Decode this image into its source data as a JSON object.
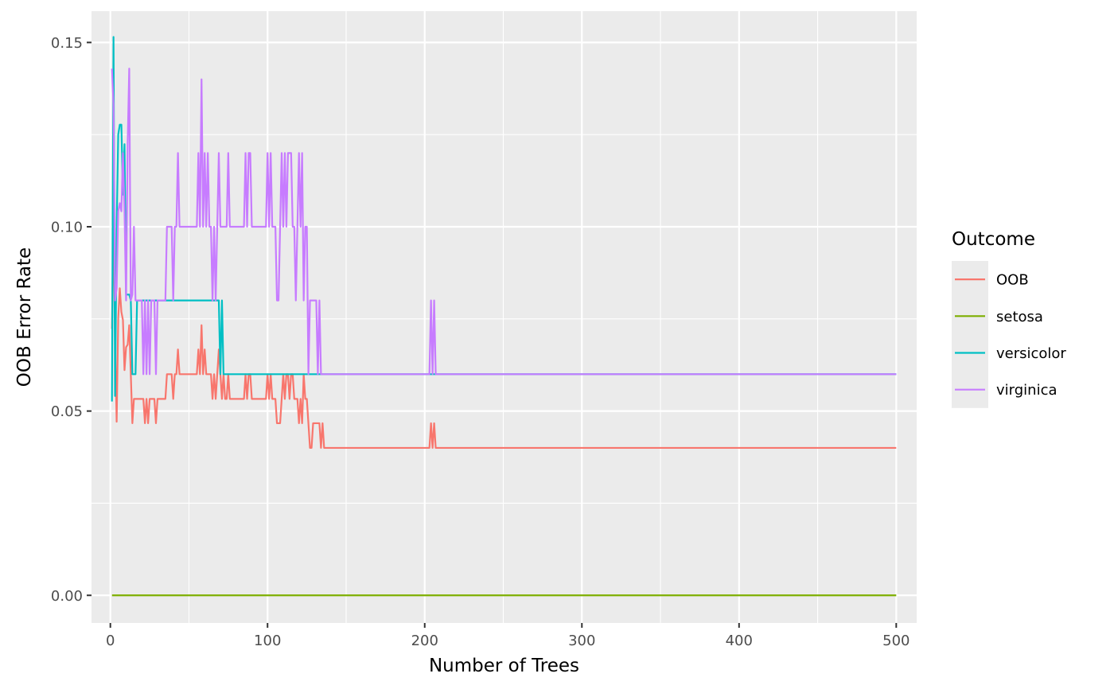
{
  "chart_data": {
    "type": "line",
    "title": "",
    "xlabel": "Number of Trees",
    "ylabel": "OOB Error Rate",
    "xlim": [
      -12,
      513
    ],
    "ylim": [
      -0.0075,
      0.1585
    ],
    "x_ticks": [
      0,
      100,
      200,
      300,
      400,
      500
    ],
    "x_tick_labels": [
      "0",
      "100",
      "200",
      "300",
      "400",
      "500"
    ],
    "y_ticks": [
      0.0,
      0.05,
      0.1,
      0.15
    ],
    "y_tick_labels": [
      "0.00",
      "0.05",
      "0.10",
      "0.15"
    ],
    "grid": true,
    "background": "#EBEBEB",
    "legend": {
      "title": "Outcome",
      "position": "right",
      "entries": [
        "OOB",
        "setosa",
        "versicolor",
        "virginica"
      ]
    },
    "series": [
      {
        "name": "OOB",
        "color": "#F8766D",
        "points": [
          [
            1,
            0.0723
          ],
          [
            2,
            0.1024
          ],
          [
            3,
            0.0687
          ],
          [
            4,
            0.0471
          ],
          [
            5,
            0.0753
          ],
          [
            6,
            0.0833
          ],
          [
            7,
            0.0769
          ],
          [
            8,
            0.0747
          ],
          [
            9,
            0.0611
          ],
          [
            10,
            0.0673
          ],
          [
            11,
            0.068
          ],
          [
            12,
            0.0733
          ],
          [
            13,
            0.06
          ],
          [
            14,
            0.0467
          ],
          [
            15,
            0.0533
          ],
          [
            16,
            0.0533
          ],
          [
            17,
            0.0533
          ],
          [
            18,
            0.0533
          ],
          [
            19,
            0.0533
          ],
          [
            20,
            0.0533
          ],
          [
            21,
            0.0533
          ],
          [
            22,
            0.0467
          ],
          [
            23,
            0.0533
          ],
          [
            24,
            0.0467
          ],
          [
            25,
            0.0533
          ],
          [
            26,
            0.0533
          ],
          [
            27,
            0.0533
          ],
          [
            28,
            0.0533
          ],
          [
            29,
            0.0467
          ],
          [
            30,
            0.0533
          ],
          [
            31,
            0.0533
          ],
          [
            32,
            0.0533
          ],
          [
            33,
            0.0533
          ],
          [
            34,
            0.0533
          ],
          [
            35,
            0.0533
          ],
          [
            36,
            0.06
          ],
          [
            37,
            0.06
          ],
          [
            38,
            0.06
          ],
          [
            39,
            0.06
          ],
          [
            40,
            0.0533
          ],
          [
            41,
            0.06
          ],
          [
            42,
            0.06
          ],
          [
            43,
            0.0667
          ],
          [
            44,
            0.06
          ],
          [
            45,
            0.06
          ],
          [
            50,
            0.06
          ],
          [
            55,
            0.06
          ],
          [
            56,
            0.0667
          ],
          [
            57,
            0.06
          ],
          [
            58,
            0.0733
          ],
          [
            59,
            0.06
          ],
          [
            60,
            0.0667
          ],
          [
            61,
            0.06
          ],
          [
            62,
            0.06
          ],
          [
            63,
            0.06
          ],
          [
            64,
            0.06
          ],
          [
            65,
            0.0533
          ],
          [
            66,
            0.06
          ],
          [
            67,
            0.0533
          ],
          [
            68,
            0.06
          ],
          [
            69,
            0.0667
          ],
          [
            70,
            0.06
          ],
          [
            71,
            0.0533
          ],
          [
            72,
            0.06
          ],
          [
            73,
            0.0533
          ],
          [
            74,
            0.0533
          ],
          [
            75,
            0.06
          ],
          [
            76,
            0.0533
          ],
          [
            77,
            0.0533
          ],
          [
            78,
            0.0533
          ],
          [
            79,
            0.0533
          ],
          [
            80,
            0.0533
          ],
          [
            85,
            0.0533
          ],
          [
            86,
            0.06
          ],
          [
            87,
            0.0533
          ],
          [
            88,
            0.06
          ],
          [
            89,
            0.06
          ],
          [
            90,
            0.0533
          ],
          [
            91,
            0.0533
          ],
          [
            92,
            0.0533
          ],
          [
            93,
            0.0533
          ],
          [
            94,
            0.0533
          ],
          [
            95,
            0.0533
          ],
          [
            96,
            0.0533
          ],
          [
            97,
            0.0533
          ],
          [
            98,
            0.0533
          ],
          [
            99,
            0.0533
          ],
          [
            100,
            0.06
          ],
          [
            101,
            0.0533
          ],
          [
            102,
            0.06
          ],
          [
            103,
            0.0533
          ],
          [
            104,
            0.0533
          ],
          [
            105,
            0.0533
          ],
          [
            106,
            0.0467
          ],
          [
            107,
            0.0467
          ],
          [
            108,
            0.0467
          ],
          [
            109,
            0.0533
          ],
          [
            110,
            0.06
          ],
          [
            111,
            0.0533
          ],
          [
            112,
            0.06
          ],
          [
            113,
            0.06
          ],
          [
            114,
            0.0533
          ],
          [
            115,
            0.06
          ],
          [
            116,
            0.06
          ],
          [
            117,
            0.0533
          ],
          [
            118,
            0.0533
          ],
          [
            119,
            0.0533
          ],
          [
            120,
            0.0467
          ],
          [
            121,
            0.0533
          ],
          [
            122,
            0.0467
          ],
          [
            123,
            0.06
          ],
          [
            124,
            0.0533
          ],
          [
            125,
            0.0533
          ],
          [
            126,
            0.0467
          ],
          [
            127,
            0.04
          ],
          [
            128,
            0.04
          ],
          [
            129,
            0.0467
          ],
          [
            130,
            0.0467
          ],
          [
            131,
            0.0467
          ],
          [
            132,
            0.0467
          ],
          [
            133,
            0.0467
          ],
          [
            134,
            0.04
          ],
          [
            135,
            0.0467
          ],
          [
            136,
            0.04
          ],
          [
            140,
            0.04
          ],
          [
            150,
            0.04
          ],
          [
            160,
            0.04
          ],
          [
            170,
            0.04
          ],
          [
            180,
            0.04
          ],
          [
            190,
            0.04
          ],
          [
            200,
            0.04
          ],
          [
            203,
            0.04
          ],
          [
            204,
            0.0467
          ],
          [
            205,
            0.04
          ],
          [
            206,
            0.0467
          ],
          [
            207,
            0.04
          ],
          [
            220,
            0.04
          ],
          [
            250,
            0.04
          ],
          [
            300,
            0.04
          ],
          [
            350,
            0.04
          ],
          [
            400,
            0.04
          ],
          [
            450,
            0.04
          ],
          [
            500,
            0.04
          ]
        ]
      },
      {
        "name": "setosa",
        "color": "#7CAE00",
        "points": [
          [
            1,
            0.0
          ],
          [
            500,
            0.0
          ]
        ]
      },
      {
        "name": "versicolor",
        "color": "#00BFC4",
        "points": [
          [
            1,
            0.0526
          ],
          [
            2,
            0.1515
          ],
          [
            3,
            0.0541
          ],
          [
            4,
            0.1
          ],
          [
            5,
            0.125
          ],
          [
            6,
            0.1277
          ],
          [
            7,
            0.1277
          ],
          [
            8,
            0.1087
          ],
          [
            9,
            0.1224
          ],
          [
            10,
            0.0816
          ],
          [
            11,
            0.0816
          ],
          [
            12,
            0.0816
          ],
          [
            13,
            0.08
          ],
          [
            14,
            0.06
          ],
          [
            15,
            0.06
          ],
          [
            16,
            0.06
          ],
          [
            17,
            0.08
          ],
          [
            30,
            0.08
          ],
          [
            50,
            0.08
          ],
          [
            68,
            0.08
          ],
          [
            69,
            0.08
          ],
          [
            70,
            0.06
          ],
          [
            71,
            0.08
          ],
          [
            72,
            0.06
          ],
          [
            100,
            0.06
          ],
          [
            200,
            0.06
          ],
          [
            300,
            0.06
          ],
          [
            400,
            0.06
          ],
          [
            500,
            0.06
          ]
        ]
      },
      {
        "name": "virginica",
        "color": "#C77CFF",
        "points": [
          [
            1,
            0.1429
          ],
          [
            2,
            0.1333
          ],
          [
            3,
            0.08
          ],
          [
            4,
            0.0833
          ],
          [
            5,
            0.1042
          ],
          [
            6,
            0.1064
          ],
          [
            7,
            0.1042
          ],
          [
            8,
            0.12
          ],
          [
            9,
            0.1042
          ],
          [
            10,
            0.08
          ],
          [
            11,
            0.1224
          ],
          [
            12,
            0.1429
          ],
          [
            13,
            0.08
          ],
          [
            14,
            0.0816
          ],
          [
            15,
            0.1
          ],
          [
            16,
            0.08
          ],
          [
            17,
            0.08
          ],
          [
            18,
            0.08
          ],
          [
            19,
            0.08
          ],
          [
            20,
            0.08
          ],
          [
            21,
            0.06
          ],
          [
            22,
            0.08
          ],
          [
            23,
            0.06
          ],
          [
            24,
            0.08
          ],
          [
            25,
            0.06
          ],
          [
            26,
            0.08
          ],
          [
            27,
            0.08
          ],
          [
            28,
            0.08
          ],
          [
            29,
            0.06
          ],
          [
            30,
            0.08
          ],
          [
            31,
            0.08
          ],
          [
            32,
            0.08
          ],
          [
            33,
            0.08
          ],
          [
            34,
            0.08
          ],
          [
            35,
            0.08
          ],
          [
            36,
            0.1
          ],
          [
            37,
            0.1
          ],
          [
            38,
            0.1
          ],
          [
            39,
            0.1
          ],
          [
            40,
            0.08
          ],
          [
            41,
            0.1
          ],
          [
            42,
            0.1
          ],
          [
            43,
            0.12
          ],
          [
            44,
            0.1
          ],
          [
            50,
            0.1
          ],
          [
            54,
            0.1
          ],
          [
            55,
            0.1
          ],
          [
            56,
            0.12
          ],
          [
            57,
            0.1
          ],
          [
            58,
            0.14
          ],
          [
            59,
            0.1
          ],
          [
            60,
            0.12
          ],
          [
            61,
            0.1
          ],
          [
            62,
            0.12
          ],
          [
            63,
            0.1
          ],
          [
            64,
            0.1
          ],
          [
            65,
            0.08
          ],
          [
            66,
            0.1
          ],
          [
            67,
            0.08
          ],
          [
            68,
            0.1
          ],
          [
            69,
            0.12
          ],
          [
            70,
            0.1
          ],
          [
            71,
            0.1
          ],
          [
            72,
            0.1
          ],
          [
            73,
            0.1
          ],
          [
            74,
            0.1
          ],
          [
            75,
            0.12
          ],
          [
            76,
            0.1
          ],
          [
            77,
            0.1
          ],
          [
            78,
            0.1
          ],
          [
            79,
            0.1
          ],
          [
            80,
            0.1
          ],
          [
            84,
            0.1
          ],
          [
            85,
            0.1
          ],
          [
            86,
            0.12
          ],
          [
            87,
            0.1
          ],
          [
            88,
            0.12
          ],
          [
            89,
            0.12
          ],
          [
            90,
            0.1
          ],
          [
            95,
            0.1
          ],
          [
            99,
            0.1
          ],
          [
            100,
            0.12
          ],
          [
            101,
            0.1
          ],
          [
            102,
            0.12
          ],
          [
            103,
            0.1
          ],
          [
            104,
            0.1
          ],
          [
            105,
            0.1
          ],
          [
            106,
            0.08
          ],
          [
            107,
            0.08
          ],
          [
            108,
            0.1
          ],
          [
            109,
            0.12
          ],
          [
            110,
            0.1
          ],
          [
            111,
            0.12
          ],
          [
            112,
            0.1
          ],
          [
            113,
            0.12
          ],
          [
            114,
            0.12
          ],
          [
            115,
            0.12
          ],
          [
            116,
            0.1
          ],
          [
            117,
            0.1
          ],
          [
            118,
            0.08
          ],
          [
            119,
            0.1
          ],
          [
            120,
            0.12
          ],
          [
            121,
            0.1
          ],
          [
            122,
            0.12
          ],
          [
            123,
            0.08
          ],
          [
            124,
            0.1
          ],
          [
            125,
            0.1
          ],
          [
            126,
            0.06
          ],
          [
            127,
            0.08
          ],
          [
            128,
            0.08
          ],
          [
            129,
            0.08
          ],
          [
            130,
            0.08
          ],
          [
            131,
            0.08
          ],
          [
            132,
            0.06
          ],
          [
            133,
            0.08
          ],
          [
            134,
            0.06
          ],
          [
            135,
            0.06
          ],
          [
            150,
            0.06
          ],
          [
            180,
            0.06
          ],
          [
            200,
            0.06
          ],
          [
            203,
            0.06
          ],
          [
            204,
            0.08
          ],
          [
            205,
            0.06
          ],
          [
            206,
            0.08
          ],
          [
            207,
            0.06
          ],
          [
            220,
            0.06
          ],
          [
            250,
            0.06
          ],
          [
            300,
            0.06
          ],
          [
            350,
            0.06
          ],
          [
            400,
            0.06
          ],
          [
            450,
            0.06
          ],
          [
            500,
            0.06
          ]
        ]
      }
    ]
  }
}
